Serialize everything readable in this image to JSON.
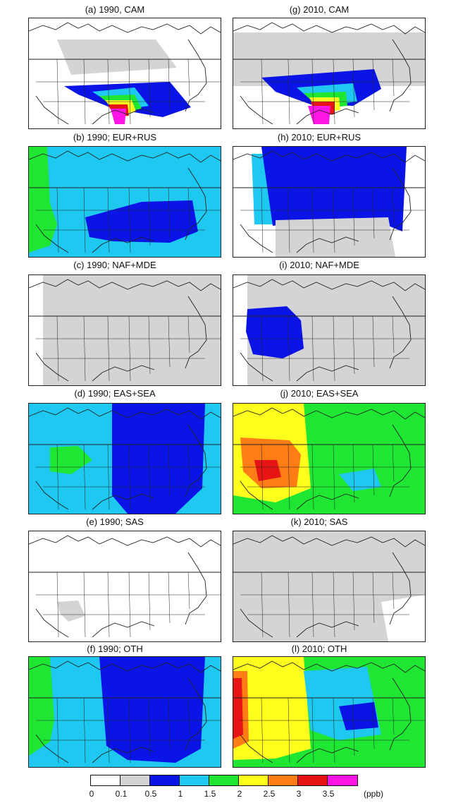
{
  "panels": [
    {
      "id": "a",
      "title": "(a) 1990, CAM",
      "fills": [
        "grey",
        "blue",
        "cyan",
        "green",
        "yellow",
        "red",
        "magenta"
      ]
    },
    {
      "id": "g",
      "title": "(g) 2010, CAM",
      "fills": [
        "grey",
        "blue",
        "cyan",
        "green",
        "yellow",
        "red",
        "magenta"
      ]
    },
    {
      "id": "b",
      "title": "(b) 1990; EUR+RUS",
      "fills": [
        "green",
        "cyan",
        "blue"
      ]
    },
    {
      "id": "h",
      "title": "(h) 2010; EUR+RUS",
      "fills": [
        "cyan",
        "blue",
        "grey"
      ]
    },
    {
      "id": "c",
      "title": "(c) 1990; NAF+MDE",
      "fills": [
        "grey"
      ]
    },
    {
      "id": "i",
      "title": "(i) 2010; NAF+MDE",
      "fills": [
        "grey",
        "blue"
      ]
    },
    {
      "id": "d",
      "title": "(d) 1990; EAS+SEA",
      "fills": [
        "cyan",
        "green",
        "blue"
      ]
    },
    {
      "id": "j",
      "title": "(j) 2010; EAS+SEA",
      "fills": [
        "yellow",
        "orange",
        "red",
        "green",
        "cyan"
      ]
    },
    {
      "id": "e",
      "title": "(e) 1990; SAS",
      "fills": [
        "white",
        "grey"
      ]
    },
    {
      "id": "k",
      "title": "(k) 2010; SAS",
      "fills": [
        "grey",
        "white"
      ]
    },
    {
      "id": "f",
      "title": "(f) 1990; OTH",
      "fills": [
        "green",
        "cyan",
        "blue"
      ]
    },
    {
      "id": "l",
      "title": "(l) 2010; OTH",
      "fills": [
        "red",
        "orange",
        "yellow",
        "green",
        "cyan",
        "blue"
      ]
    }
  ],
  "legend": {
    "unit": "(ppb)",
    "ticks": [
      "0",
      "0.1",
      "0.5",
      "1",
      "1.5",
      "2",
      "2.5",
      "3",
      "3.5"
    ],
    "colors": [
      "#ffffff",
      "#d4d4d4",
      "#0a14e6",
      "#1ec8f0",
      "#1ee632",
      "#ffff1e",
      "#ff7d14",
      "#e61414",
      "#ff14e6"
    ]
  },
  "palette": {
    "white": "#ffffff",
    "grey": "#d4d4d4",
    "blue": "#0a14e6",
    "cyan": "#1ec8f0",
    "green": "#1ee632",
    "yellow": "#ffff1e",
    "orange": "#ff7d14",
    "red": "#e61414",
    "magenta": "#ff14e6"
  }
}
